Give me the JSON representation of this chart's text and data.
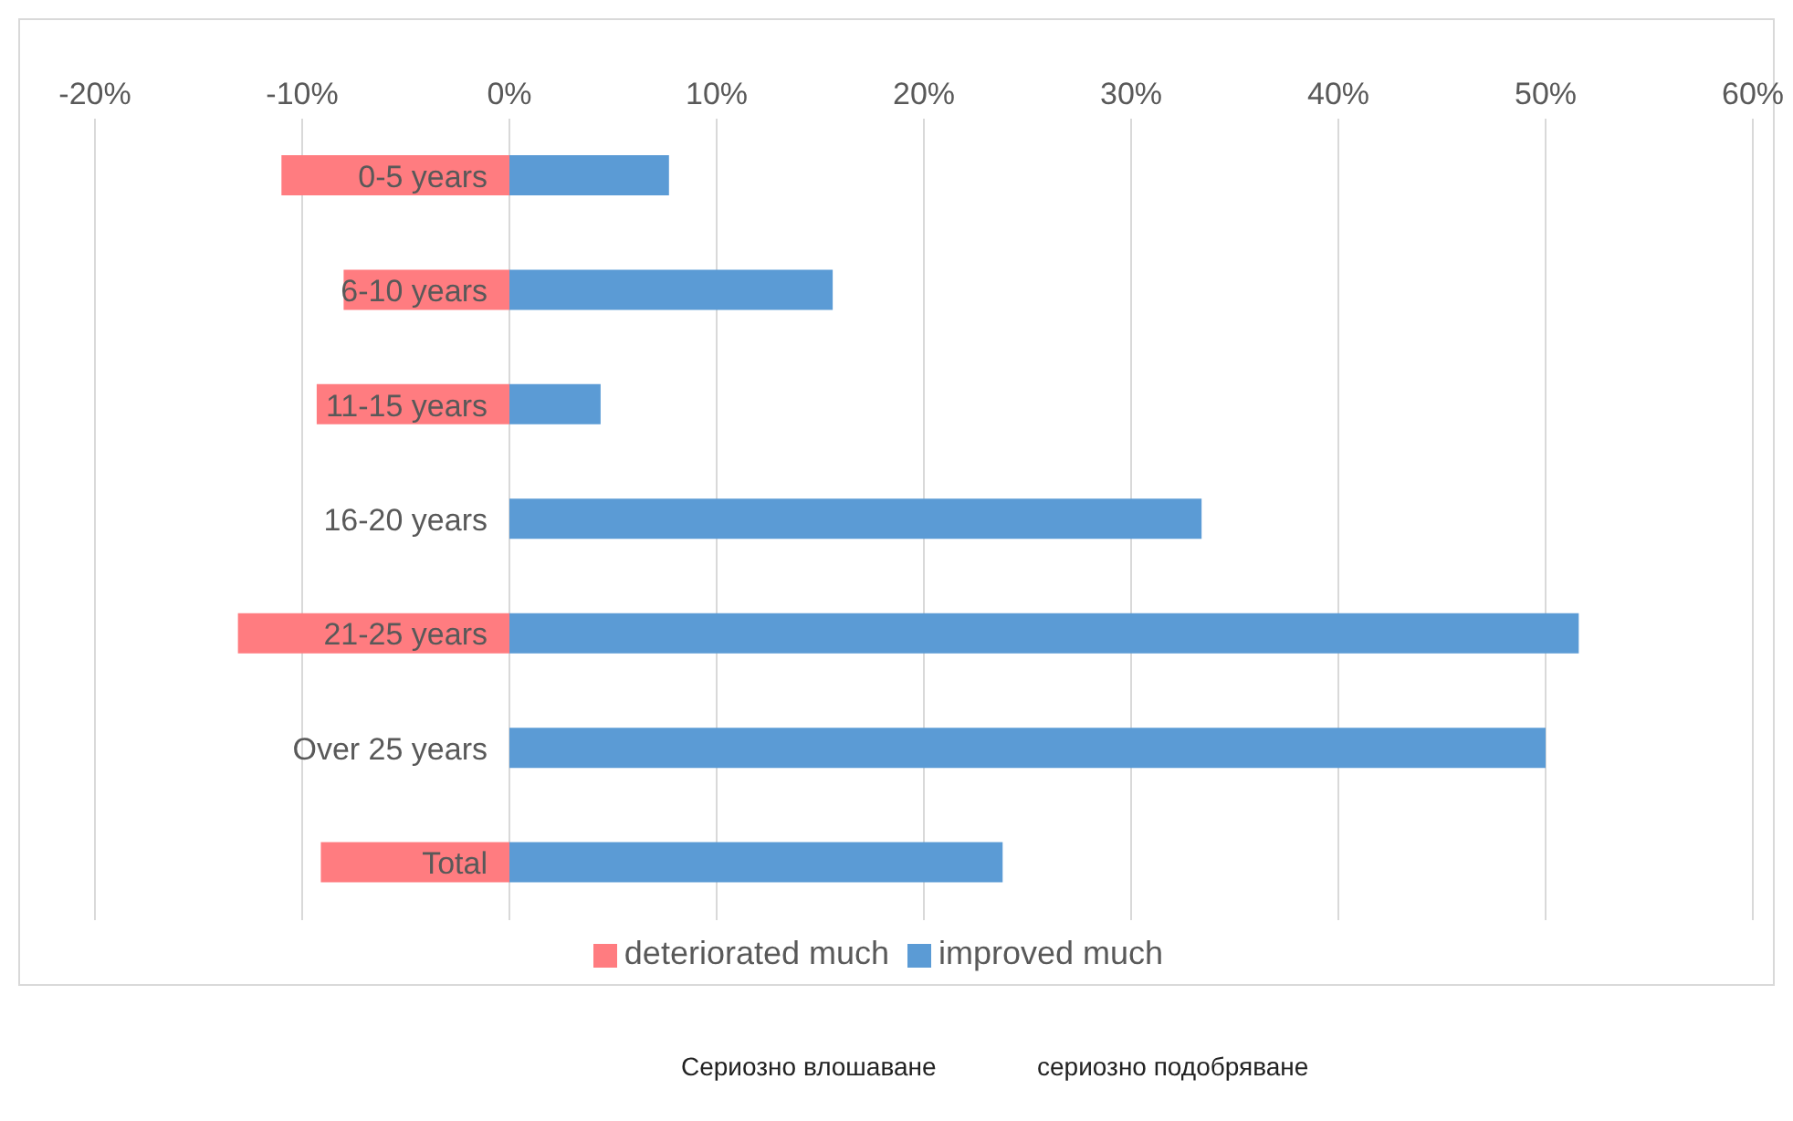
{
  "chart_data": {
    "type": "bar",
    "orientation": "horizontal",
    "stacked": true,
    "categories": [
      "0-5 years",
      "6-10 years",
      "11-15 years",
      "16-20 years",
      "21-25 years",
      "Over 25 years",
      "Total"
    ],
    "series": [
      {
        "name": "deteriorated much",
        "color": "#ff7c80",
        "values": [
          -11,
          -8,
          -9.3,
          0,
          -13.1,
          0,
          -9.1
        ]
      },
      {
        "name": "improved much",
        "color": "#5b9bd5",
        "values": [
          7.7,
          15.6,
          4.4,
          33.4,
          51.6,
          50,
          23.8
        ]
      }
    ],
    "xlim": [
      -20,
      60
    ],
    "xticks": [
      {
        "value": -20,
        "label": "-20%"
      },
      {
        "value": -10,
        "label": "-10%"
      },
      {
        "value": 0,
        "label": "0%"
      },
      {
        "value": 10,
        "label": "10%"
      },
      {
        "value": 20,
        "label": "20%"
      },
      {
        "value": 30,
        "label": "30%"
      },
      {
        "value": 40,
        "label": "40%"
      },
      {
        "value": 50,
        "label": "50%"
      },
      {
        "value": 60,
        "label": "60%"
      }
    ],
    "grid": "x",
    "legend": "bottom",
    "annotations": [
      "Сериозно влошаване",
      "сериозно подобряване"
    ]
  }
}
